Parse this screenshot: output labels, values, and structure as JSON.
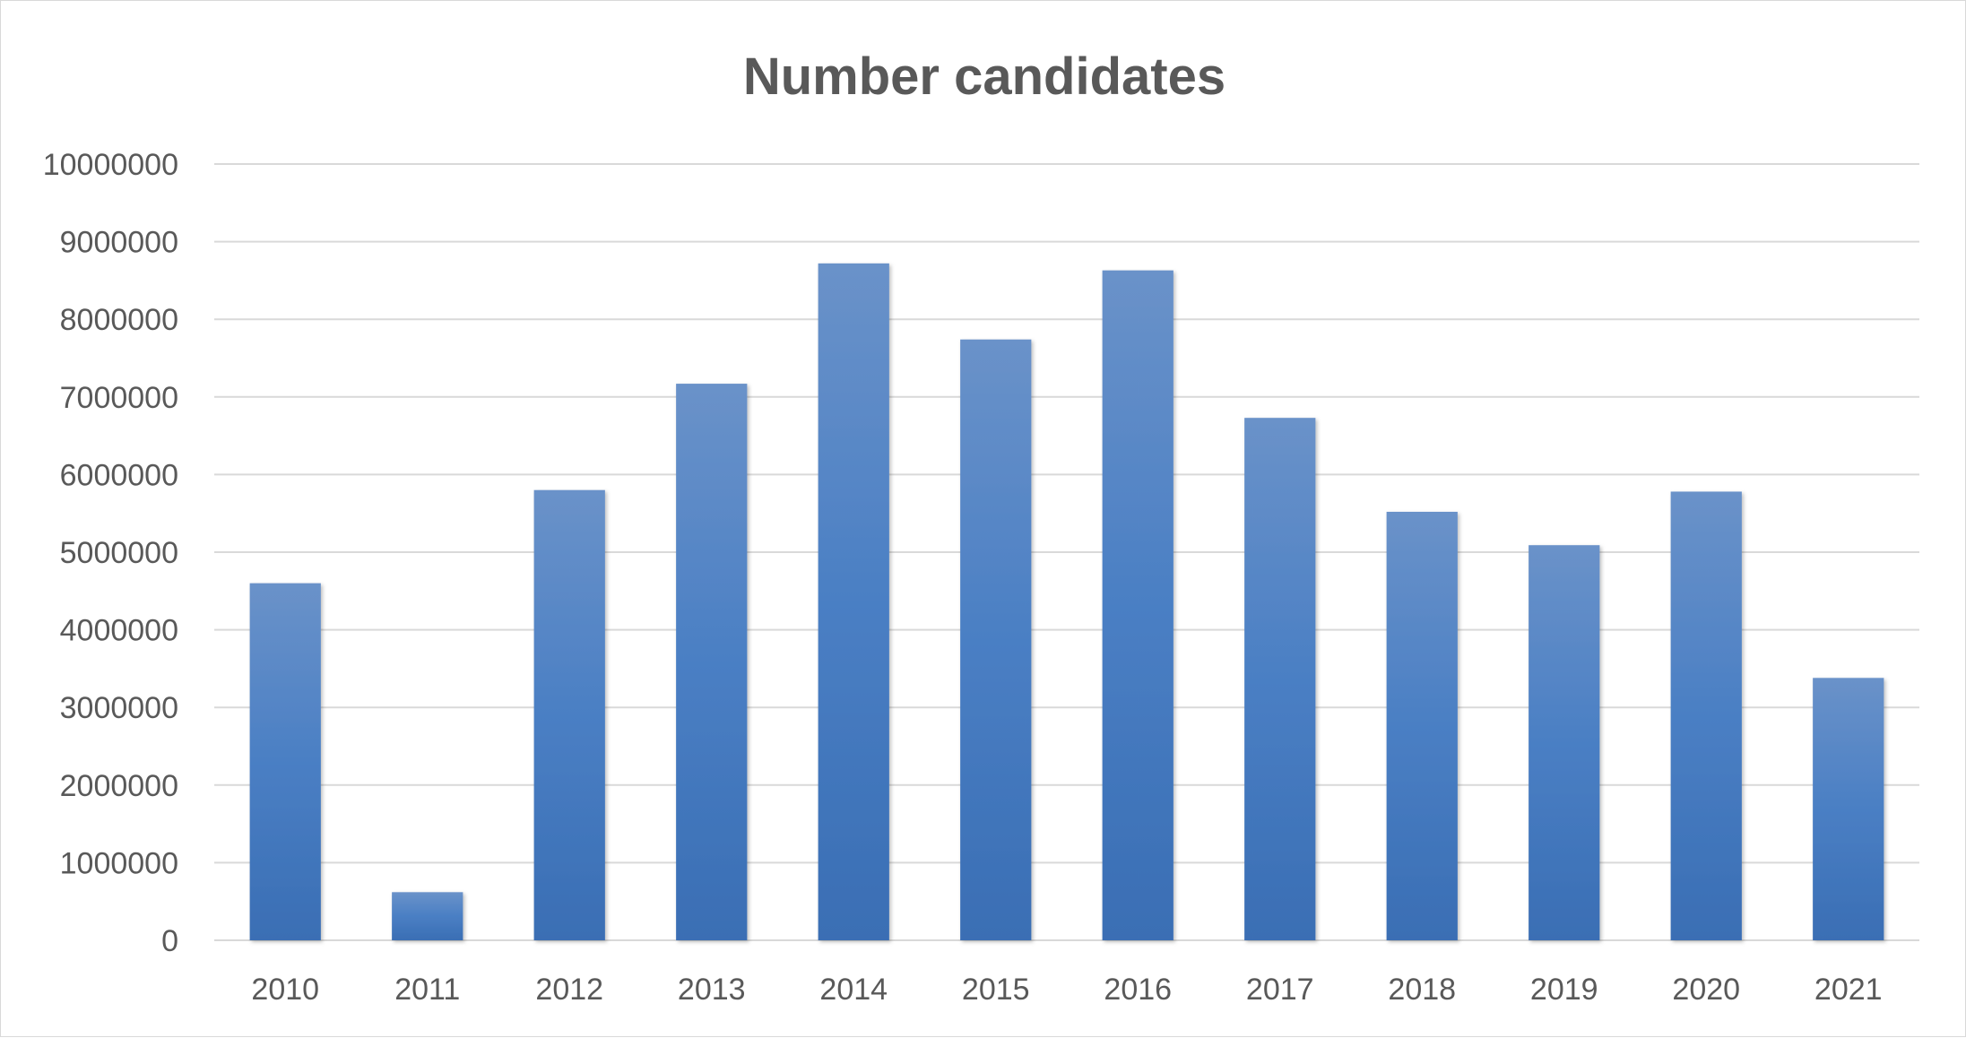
{
  "chart_data": {
    "type": "bar",
    "title": "Number candidates",
    "categories": [
      "2010",
      "2011",
      "2012",
      "2013",
      "2014",
      "2015",
      "2016",
      "2017",
      "2018",
      "2019",
      "2020",
      "2021"
    ],
    "series": [
      {
        "values": [
          4600000,
          620000,
          5800000,
          7170000,
          8720000,
          7740000,
          8630000,
          6730000,
          5520000,
          5090000,
          5780000,
          3380000
        ]
      }
    ],
    "ylim": [
      0,
      10000000
    ],
    "yticks": [
      "0",
      "1000000",
      "2000000",
      "3000000",
      "4000000",
      "5000000",
      "6000000",
      "7000000",
      "8000000",
      "9000000",
      "10000000"
    ],
    "xlabel": "",
    "ylabel": "",
    "grid": true,
    "legend": "none",
    "bar_color": "#4472c4"
  }
}
